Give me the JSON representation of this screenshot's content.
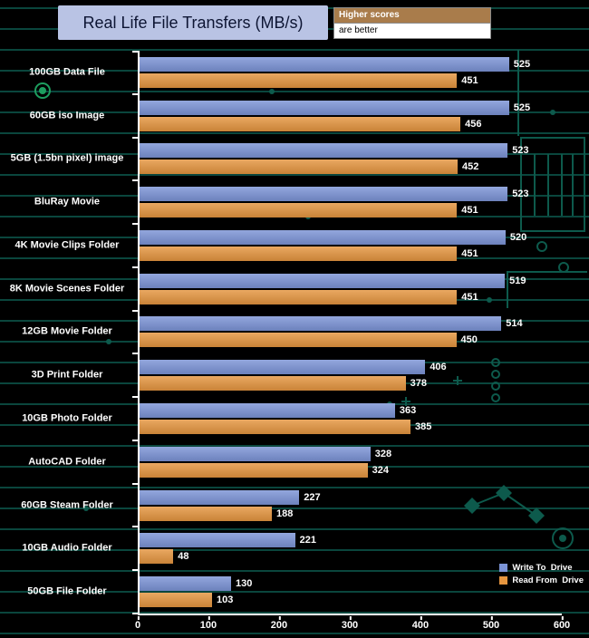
{
  "title": "Real Life File Transfers (MB/s)",
  "note": {
    "line1": "Higher scores",
    "line2": "are better"
  },
  "legend": [
    {
      "label": "Write To  Drive",
      "color": "#7b93d6"
    },
    {
      "label": "Read From  Drive",
      "color": "#e5953f"
    }
  ],
  "colors": {
    "write_bar": "#7b93d6",
    "read_bar": "#e5953f",
    "background": "#000000",
    "circuit_teal": "#0b4a40",
    "axis": "#ffffff",
    "title_box_bg": "#b9c3e4",
    "note_top_bg": "#a97c4b"
  },
  "chart_data": {
    "type": "bar",
    "orientation": "horizontal",
    "title": "Real Life File Transfers (MB/s)",
    "xlabel": "",
    "ylabel": "",
    "xlim": [
      0,
      600
    ],
    "xticks": [
      0,
      100,
      200,
      300,
      400,
      500,
      600
    ],
    "grid": false,
    "legend_position": "bottom-right",
    "categories": [
      "100GB Data File",
      "60GB iso Image",
      "5GB (1.5bn pixel) image",
      "BluRay Movie",
      "4K Movie Clips Folder",
      "8K Movie Scenes Folder",
      "12GB Movie Folder",
      "3D Print Folder",
      "10GB Photo Folder",
      "AutoCAD Folder",
      "60GB Steam Folder",
      "10GB Audio Folder",
      "50GB File Folder"
    ],
    "series": [
      {
        "name": "Write To Drive",
        "color": "#7b93d6",
        "values": [
          525,
          525,
          523,
          523,
          520,
          519,
          514,
          406,
          363,
          328,
          227,
          221,
          130
        ]
      },
      {
        "name": "Read From Drive",
        "color": "#e5953f",
        "values": [
          451,
          456,
          452,
          451,
          451,
          451,
          450,
          378,
          385,
          324,
          188,
          48,
          103
        ]
      }
    ]
  }
}
